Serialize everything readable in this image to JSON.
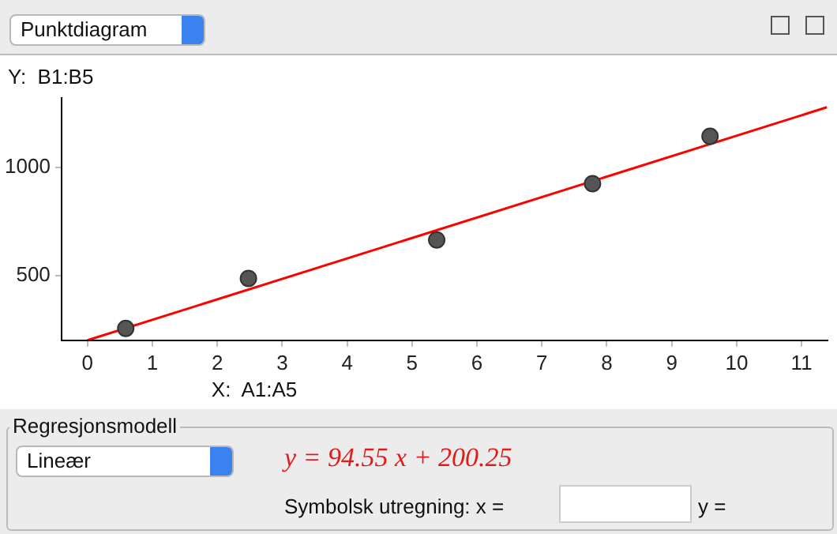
{
  "chart_data": {
    "type": "scatter",
    "xlabel": "X:  A1:A5",
    "ylabel": "Y:  B1:B5",
    "annotations": [
      "Punktdiagram",
      "Regresjonsmodell",
      "Lineær",
      "y = 94.55 x + 200.25",
      "Symbolsk utregning:  x =",
      "y ="
    ],
    "series": [
      {
        "color": "#555555",
        "marker": "circle",
        "x": [
          0.59,
          2.48,
          5.38,
          7.78,
          9.59
        ],
        "values": [
          255,
          486,
          664,
          924,
          1143
        ]
      },
      {
        "type": "line",
        "color": "#ff0000",
        "marker": "none",
        "x": [
          0,
          11.39
        ],
        "values": [
          200,
          1277
        ]
      }
    ],
    "xlim": [
      -0.4,
      11.4
    ],
    "xticks": [
      0,
      1,
      2,
      3,
      4,
      5,
      6,
      7,
      8,
      9,
      10,
      11
    ],
    "ylim": [
      200,
      1320
    ],
    "yticks": [
      500,
      1000
    ],
    "grid": false,
    "legend": false,
    "line_style": "solid"
  }
}
